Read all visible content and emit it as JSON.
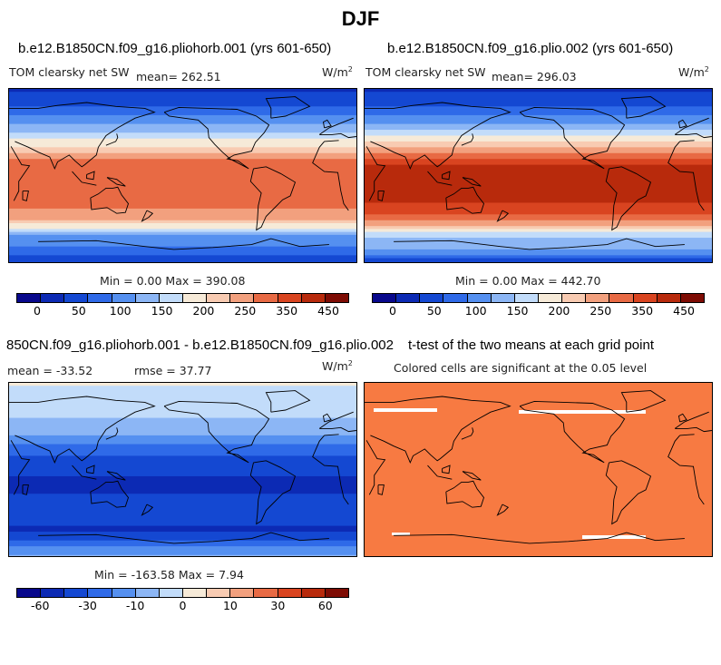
{
  "figure": {
    "title": "DJF",
    "colors": {
      "full_field_levels": [
        "#08088c",
        "#0c2ab4",
        "#1448d2",
        "#2f6ae8",
        "#5590f0",
        "#8cb6f5",
        "#c2dcfa",
        "#f6ead8",
        "#f8cbb2",
        "#f2a07e",
        "#e86a44",
        "#d94420",
        "#b82a0c",
        "#7e0c04"
      ],
      "diff_levels": [
        "#08088c",
        "#0c2ab4",
        "#1448d2",
        "#2f6ae8",
        "#5590f0",
        "#8cb6f5",
        "#c2dcfa",
        "#f6ead8",
        "#f8cbb2",
        "#f2a07e",
        "#e86a44",
        "#d94420",
        "#b82a0c",
        "#7e0c04"
      ],
      "ttest_fill": "#f77a42"
    }
  },
  "panels": {
    "p1": {
      "title": "b.e12.B1850CN.f09_g16.pliohorb.001 (yrs 601-650)",
      "variable": "TOM clearsky net SW",
      "mean": "mean= 262.51",
      "units": "W/m",
      "units_sup": "2",
      "minmax": "Min =    0.00 Max = 390.08",
      "ticks": [
        "0",
        "50",
        "100",
        "150",
        "200",
        "250",
        "350",
        "450"
      ]
    },
    "p2": {
      "title": "b.e12.B1850CN.f09_g16.plio.002 (yrs 601-650)",
      "variable": "TOM clearsky net SW",
      "mean": "mean= 296.03",
      "units": "W/m",
      "units_sup": "2",
      "minmax": "Min =    0.00 Max = 442.70",
      "ticks": [
        "0",
        "50",
        "100",
        "150",
        "200",
        "250",
        "350",
        "450"
      ]
    },
    "p3": {
      "title": "850CN.f09_g16.pliohorb.001 - b.e12.B1850CN.f09_g16.plio.002",
      "mean": "mean = -33.52",
      "rmse": "rmse =  37.77",
      "units": "W/m",
      "units_sup": "2",
      "minmax": "Min = -163.58 Max =   7.94",
      "ticks": [
        "-60",
        "-30",
        "-10",
        "0",
        "10",
        "30",
        "60"
      ]
    },
    "p4": {
      "title": "t-test of the two means at each grid point",
      "subtitle": "Colored cells are significant at the 0.05 level"
    }
  },
  "chart_data": [
    {
      "type": "heatmap",
      "title": "b.e12.B1850CN.f09_g16.pliohorb.001 (yrs 601-650)",
      "variable": "TOM clearsky net SW",
      "mean": 262.51,
      "min": 0.0,
      "max": 390.08,
      "colorbar_ticks": [
        0,
        50,
        100,
        150,
        200,
        250,
        350,
        450
      ],
      "zonal_profile": [
        [
          90,
          60
        ],
        [
          75,
          90
        ],
        [
          60,
          140
        ],
        [
          45,
          190
        ],
        [
          30,
          260
        ],
        [
          15,
          330
        ],
        [
          0,
          350
        ],
        [
          -15,
          345
        ],
        [
          -30,
          330
        ],
        [
          -45,
          290
        ],
        [
          -60,
          160
        ],
        [
          -75,
          120
        ],
        [
          -90,
          60
        ]
      ]
    },
    {
      "type": "heatmap",
      "title": "b.e12.B1850CN.f09_g16.plio.002 (yrs 601-650)",
      "variable": "TOM clearsky net SW",
      "mean": 296.03,
      "min": 0.0,
      "max": 442.7,
      "colorbar_ticks": [
        0,
        50,
        100,
        150,
        200,
        250,
        350,
        450
      ],
      "zonal_profile": [
        [
          90,
          60
        ],
        [
          75,
          90
        ],
        [
          60,
          140
        ],
        [
          45,
          200
        ],
        [
          30,
          290
        ],
        [
          15,
          380
        ],
        [
          0,
          410
        ],
        [
          -15,
          410
        ],
        [
          -30,
          380
        ],
        [
          -45,
          330
        ],
        [
          -60,
          200
        ],
        [
          -75,
          160
        ],
        [
          -90,
          60
        ]
      ]
    },
    {
      "type": "heatmap",
      "title": "850CN.f09_g16.pliohorb.001 - b.e12.B1850CN.f09_g16.plio.002",
      "mean": -33.52,
      "rmse": 37.77,
      "min": -163.58,
      "max": 7.94,
      "colorbar_ticks": [
        -60,
        -30,
        -10,
        0,
        10,
        30,
        60
      ],
      "zonal_profile": [
        [
          90,
          2
        ],
        [
          75,
          -5
        ],
        [
          60,
          -8
        ],
        [
          45,
          -15
        ],
        [
          30,
          -30
        ],
        [
          15,
          -45
        ],
        [
          0,
          -55
        ],
        [
          -15,
          -60
        ],
        [
          -30,
          -55
        ],
        [
          -45,
          -45
        ],
        [
          -60,
          -60
        ],
        [
          -75,
          -40
        ],
        [
          -90,
          -20
        ]
      ]
    },
    {
      "type": "heatmap",
      "title": "t-test of the two means at each grid point",
      "subtitle": "Colored cells are significant at the 0.05 level"
    }
  ]
}
